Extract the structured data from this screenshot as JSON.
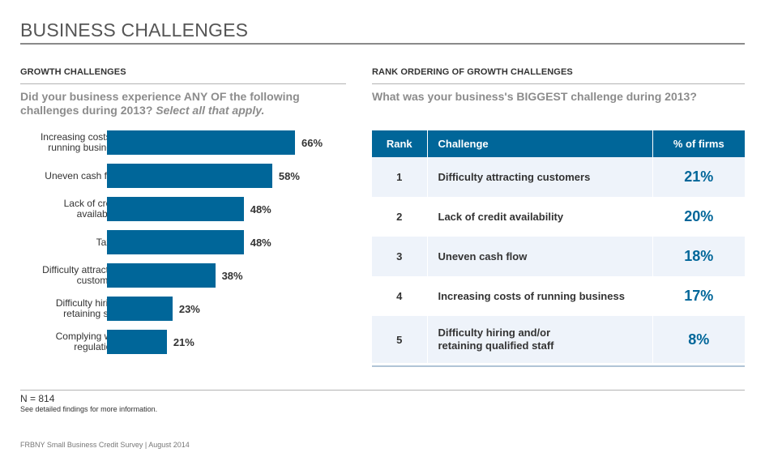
{
  "page": {
    "title": "BUSINESS CHALLENGES"
  },
  "left_panel": {
    "section_label": "GROWTH CHALLENGES",
    "question_main": "Did your business experience ANY OF the following challenges during 2013?",
    "question_note": "Select all that apply."
  },
  "chart_data": {
    "type": "bar",
    "orientation": "horizontal",
    "categories": [
      "Increasing costs of running business",
      "Uneven cash flow",
      "Lack of credit availability",
      "Taxes",
      "Difficulty attracting customers",
      "Difficulty hiring/ retaining staff",
      "Complying with regulations"
    ],
    "label_lines": [
      [
        "Increasing costs of",
        "running business"
      ],
      [
        "Uneven cash flow"
      ],
      [
        "Lack of credit",
        "availability"
      ],
      [
        "Taxes"
      ],
      [
        "Difficulty attracting",
        "customers"
      ],
      [
        "Difficulty hiring/",
        "retaining staff"
      ],
      [
        "Complying with",
        "regulations"
      ]
    ],
    "values": [
      66,
      58,
      48,
      48,
      38,
      23,
      21
    ],
    "value_labels": [
      "66%",
      "58%",
      "48%",
      "48%",
      "38%",
      "23%",
      "21%"
    ],
    "xlim": [
      0,
      100
    ],
    "bar_color": "#006699",
    "grid": false
  },
  "right_panel": {
    "section_label": "RANK ORDERING OF GROWTH CHALLENGES",
    "question": "What was your business's BIGGEST challenge during 2013?",
    "table": {
      "headers": [
        "Rank",
        "Challenge",
        "% of firms"
      ],
      "rows": [
        {
          "rank": "1",
          "challenge": "Difficulty attracting customers",
          "pct": "21%"
        },
        {
          "rank": "2",
          "challenge": "Lack of credit availability",
          "pct": "20%"
        },
        {
          "rank": "3",
          "challenge": "Uneven cash flow",
          "pct": "18%"
        },
        {
          "rank": "4",
          "challenge": "Increasing costs of running business",
          "pct": "17%"
        },
        {
          "rank": "5",
          "challenge": "Difficulty hiring and/or retaining qualified staff",
          "pct": "8%"
        }
      ]
    }
  },
  "footer": {
    "n_note": "N = 814",
    "more_info": "See detailed findings for more information.",
    "source": "FRBNY Small Business Credit Survey  |  August 2014"
  },
  "colors": {
    "accent": "#006699",
    "row_shade": "#eef3fa"
  }
}
